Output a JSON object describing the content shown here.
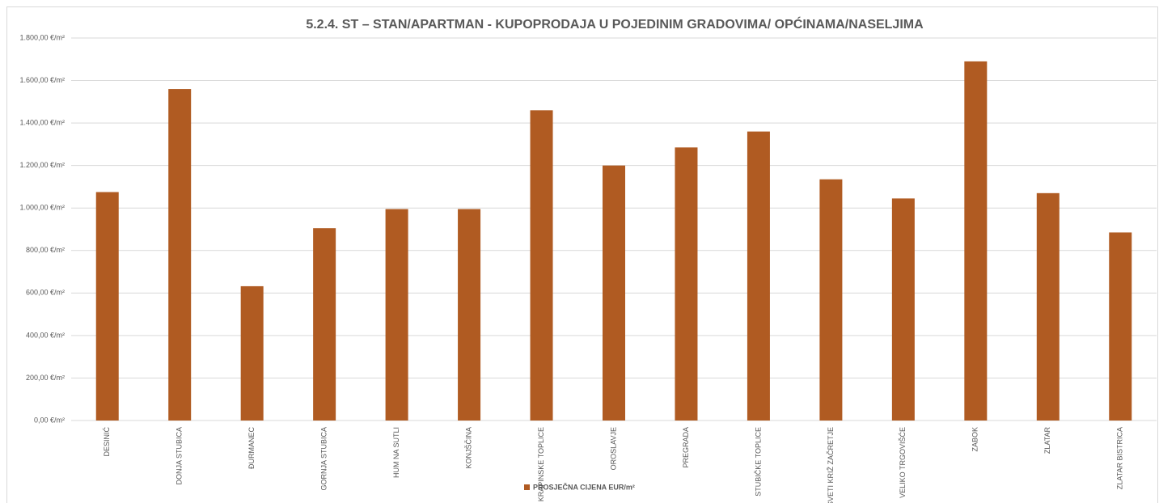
{
  "chart_data": {
    "type": "bar",
    "title": "5.2.4. ST – STAN/APARTMAN - KUPOPRODAJA U POJEDINIM GRADOVIMA/ OPĆINAMA/NASELJIMA",
    "categories": [
      "DESINIĆ",
      "DONJA STUBICA",
      "ĐURMANEC",
      "GORNJA STUBICA",
      "HUM NA SUTLI",
      "KONJŠČINA",
      "KRAPINSKE TOPLICE",
      "OROSLAVJE",
      "PREGRADA",
      "STUBIČKE TOPLICE",
      "SVETI KRIŽ ZAČRETJE",
      "VELIKO TRGOVIŠĆE",
      "ZABOK",
      "ZLATAR",
      "ZLATAR BISTRICA"
    ],
    "series": [
      {
        "name": "PROSJEČNA CIJENA EUR/m²",
        "color": "#b05b22",
        "values": [
          1075,
          1560,
          632,
          905,
          995,
          995,
          1460,
          1200,
          1285,
          1360,
          1135,
          1045,
          1690,
          1070,
          885
        ]
      }
    ],
    "ylim": [
      0,
      1800
    ],
    "yticks": [
      {
        "value": 0,
        "label": "0,00 €/m²"
      },
      {
        "value": 200,
        "label": "200,00 €/m²"
      },
      {
        "value": 400,
        "label": "400,00 €/m²"
      },
      {
        "value": 600,
        "label": "600,00 €/m²"
      },
      {
        "value": 800,
        "label": "800,00 €/m²"
      },
      {
        "value": 1000,
        "label": "1.000,00 €/m²"
      },
      {
        "value": 1200,
        "label": "1.200,00 €/m²"
      },
      {
        "value": 1400,
        "label": "1.400,00 €/m²"
      },
      {
        "value": 1600,
        "label": "1.600,00 €/m²"
      },
      {
        "value": 1800,
        "label": "1.800,00 €/m²"
      }
    ],
    "grid": true,
    "legend": "bottom"
  }
}
